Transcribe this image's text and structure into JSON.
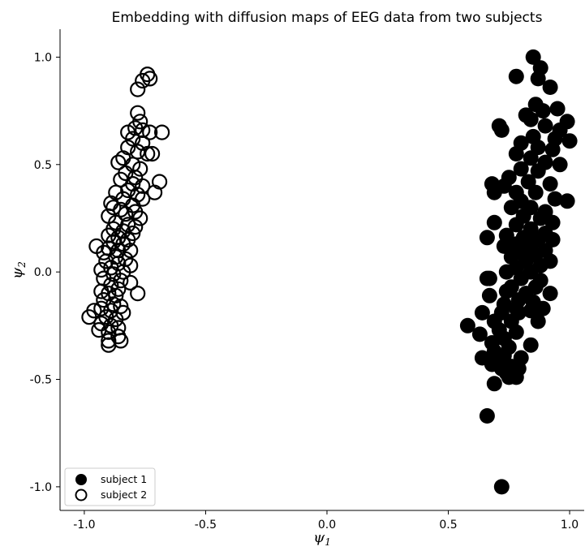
{
  "chart_data": {
    "type": "scatter",
    "title": "Embedding with diffusion maps of EEG data from two subjects",
    "xlabel": "ψ",
    "xlabel_sub": "1",
    "ylabel": "ψ",
    "ylabel_sub": "2",
    "xlim": [
      -1.1,
      1.06
    ],
    "ylim": [
      -1.11,
      1.13
    ],
    "xticks": [
      -1.0,
      -0.5,
      0.0,
      0.5,
      1.0
    ],
    "xtick_labels": [
      "-1.0",
      "-0.5",
      "0.0",
      "0.5",
      "1.0"
    ],
    "yticks": [
      -1.0,
      -0.5,
      0.0,
      0.5,
      1.0
    ],
    "ytick_labels": [
      "-1.0",
      "-0.5",
      "0.0",
      "0.5",
      "1.0"
    ],
    "grid": false,
    "legend_placement": "lower-left",
    "colors": {
      "marker": "#000000",
      "background": "#ffffff"
    },
    "series": [
      {
        "name": "subject 1",
        "marker": "filled-circle",
        "points": [
          [
            0.85,
            1.0
          ],
          [
            0.88,
            0.95
          ],
          [
            0.78,
            0.91
          ],
          [
            0.87,
            0.9
          ],
          [
            0.92,
            0.86
          ],
          [
            0.86,
            0.78
          ],
          [
            0.95,
            0.76
          ],
          [
            0.89,
            0.75
          ],
          [
            0.82,
            0.73
          ],
          [
            0.84,
            0.71
          ],
          [
            0.99,
            0.7
          ],
          [
            0.71,
            0.68
          ],
          [
            0.9,
            0.68
          ],
          [
            0.96,
            0.66
          ],
          [
            0.72,
            0.66
          ],
          [
            0.85,
            0.63
          ],
          [
            0.94,
            0.62
          ],
          [
            1.0,
            0.61
          ],
          [
            0.8,
            0.6
          ],
          [
            0.87,
            0.58
          ],
          [
            0.93,
            0.57
          ],
          [
            0.78,
            0.55
          ],
          [
            0.84,
            0.53
          ],
          [
            0.9,
            0.51
          ],
          [
            0.96,
            0.5
          ],
          [
            0.8,
            0.48
          ],
          [
            0.87,
            0.47
          ],
          [
            0.75,
            0.44
          ],
          [
            0.83,
            0.42
          ],
          [
            0.92,
            0.41
          ],
          [
            0.68,
            0.41
          ],
          [
            0.73,
            0.4
          ],
          [
            0.69,
            0.37
          ],
          [
            0.78,
            0.37
          ],
          [
            0.86,
            0.37
          ],
          [
            0.94,
            0.34
          ],
          [
            0.99,
            0.33
          ],
          [
            0.8,
            0.33
          ],
          [
            0.76,
            0.3
          ],
          [
            0.84,
            0.3
          ],
          [
            0.9,
            0.28
          ],
          [
            0.81,
            0.26
          ],
          [
            0.88,
            0.25
          ],
          [
            0.93,
            0.23
          ],
          [
            0.69,
            0.23
          ],
          [
            0.78,
            0.22
          ],
          [
            0.84,
            0.2
          ],
          [
            0.9,
            0.18
          ],
          [
            0.74,
            0.17
          ],
          [
            0.81,
            0.16
          ],
          [
            0.66,
            0.16
          ],
          [
            0.87,
            0.15
          ],
          [
            0.93,
            0.15
          ],
          [
            0.78,
            0.13
          ],
          [
            0.84,
            0.12
          ],
          [
            0.73,
            0.12
          ],
          [
            0.9,
            0.1
          ],
          [
            0.8,
            0.09
          ],
          [
            0.86,
            0.08
          ],
          [
            0.76,
            0.07
          ],
          [
            0.82,
            0.05
          ],
          [
            0.92,
            0.05
          ],
          [
            0.88,
            0.03
          ],
          [
            0.78,
            0.02
          ],
          [
            0.84,
            0.0
          ],
          [
            0.74,
            0.0
          ],
          [
            0.67,
            -0.03
          ],
          [
            0.66,
            -0.03
          ],
          [
            0.8,
            -0.03
          ],
          [
            0.88,
            -0.04
          ],
          [
            0.86,
            -0.07
          ],
          [
            0.76,
            -0.07
          ],
          [
            0.92,
            -0.1
          ],
          [
            0.74,
            -0.09
          ],
          [
            0.82,
            -0.1
          ],
          [
            0.67,
            -0.11
          ],
          [
            0.79,
            -0.13
          ],
          [
            0.85,
            -0.14
          ],
          [
            0.73,
            -0.15
          ],
          [
            0.89,
            -0.17
          ],
          [
            0.78,
            -0.17
          ],
          [
            0.84,
            -0.18
          ],
          [
            0.72,
            -0.19
          ],
          [
            0.79,
            -0.19
          ],
          [
            0.64,
            -0.19
          ],
          [
            0.87,
            -0.23
          ],
          [
            0.69,
            -0.23
          ],
          [
            0.76,
            -0.23
          ],
          [
            0.58,
            -0.25
          ],
          [
            0.71,
            -0.27
          ],
          [
            0.78,
            -0.28
          ],
          [
            0.63,
            -0.29
          ],
          [
            0.73,
            -0.31
          ],
          [
            0.68,
            -0.33
          ],
          [
            0.84,
            -0.34
          ],
          [
            0.75,
            -0.35
          ],
          [
            0.69,
            -0.37
          ],
          [
            0.73,
            -0.39
          ],
          [
            0.64,
            -0.4
          ],
          [
            0.8,
            -0.4
          ],
          [
            0.7,
            -0.41
          ],
          [
            0.68,
            -0.43
          ],
          [
            0.76,
            -0.44
          ],
          [
            0.72,
            -0.45
          ],
          [
            0.79,
            -0.45
          ],
          [
            0.74,
            -0.47
          ],
          [
            0.75,
            -0.49
          ],
          [
            0.78,
            -0.49
          ],
          [
            0.69,
            -0.52
          ],
          [
            0.66,
            -0.67
          ],
          [
            0.72,
            -1.0
          ]
        ]
      },
      {
        "name": "subject 2",
        "marker": "hollow-circle",
        "points": [
          [
            -0.74,
            0.92
          ],
          [
            -0.73,
            0.9
          ],
          [
            -0.76,
            0.89
          ],
          [
            -0.78,
            0.85
          ],
          [
            -0.78,
            0.74
          ],
          [
            -0.77,
            0.7
          ],
          [
            -0.79,
            0.67
          ],
          [
            -0.76,
            0.66
          ],
          [
            -0.82,
            0.65
          ],
          [
            -0.68,
            0.65
          ],
          [
            -0.73,
            0.65
          ],
          [
            -0.8,
            0.62
          ],
          [
            -0.76,
            0.6
          ],
          [
            -0.82,
            0.58
          ],
          [
            -0.78,
            0.56
          ],
          [
            -0.72,
            0.55
          ],
          [
            -0.74,
            0.55
          ],
          [
            -0.84,
            0.53
          ],
          [
            -0.86,
            0.51
          ],
          [
            -0.8,
            0.5
          ],
          [
            -0.77,
            0.48
          ],
          [
            -0.83,
            0.46
          ],
          [
            -0.79,
            0.44
          ],
          [
            -0.85,
            0.43
          ],
          [
            -0.69,
            0.42
          ],
          [
            -0.8,
            0.41
          ],
          [
            -0.76,
            0.4
          ],
          [
            -0.82,
            0.38
          ],
          [
            -0.87,
            0.37
          ],
          [
            -0.71,
            0.37
          ],
          [
            -0.78,
            0.36
          ],
          [
            -0.84,
            0.34
          ],
          [
            -0.76,
            0.34
          ],
          [
            -0.89,
            0.32
          ],
          [
            -0.8,
            0.31
          ],
          [
            -0.88,
            0.3
          ],
          [
            -0.85,
            0.29
          ],
          [
            -0.79,
            0.28
          ],
          [
            -0.83,
            0.27
          ],
          [
            -0.9,
            0.26
          ],
          [
            -0.77,
            0.25
          ],
          [
            -0.87,
            0.23
          ],
          [
            -0.82,
            0.22
          ],
          [
            -0.79,
            0.21
          ],
          [
            -0.88,
            0.2
          ],
          [
            -0.84,
            0.19
          ],
          [
            -0.8,
            0.18
          ],
          [
            -0.9,
            0.17
          ],
          [
            -0.86,
            0.16
          ],
          [
            -0.82,
            0.15
          ],
          [
            -0.88,
            0.14
          ],
          [
            -0.84,
            0.13
          ],
          [
            -0.95,
            0.12
          ],
          [
            -0.9,
            0.11
          ],
          [
            -0.86,
            0.1
          ],
          [
            -0.81,
            0.1
          ],
          [
            -0.92,
            0.09
          ],
          [
            -0.87,
            0.07
          ],
          [
            -0.83,
            0.06
          ],
          [
            -0.91,
            0.05
          ],
          [
            -0.86,
            0.04
          ],
          [
            -0.81,
            0.03
          ],
          [
            -0.89,
            0.02
          ],
          [
            -0.93,
            0.01
          ],
          [
            -0.84,
            0.0
          ],
          [
            -0.88,
            -0.01
          ],
          [
            -0.92,
            -0.03
          ],
          [
            -0.85,
            -0.04
          ],
          [
            -0.81,
            -0.05
          ],
          [
            -0.89,
            -0.06
          ],
          [
            -0.86,
            -0.08
          ],
          [
            -0.93,
            -0.09
          ],
          [
            -0.9,
            -0.1
          ],
          [
            -0.78,
            -0.1
          ],
          [
            -0.87,
            -0.11
          ],
          [
            -0.92,
            -0.13
          ],
          [
            -0.88,
            -0.15
          ],
          [
            -0.85,
            -0.16
          ],
          [
            -0.93,
            -0.17
          ],
          [
            -0.89,
            -0.18
          ],
          [
            -0.96,
            -0.18
          ],
          [
            -0.84,
            -0.19
          ],
          [
            -0.98,
            -0.21
          ],
          [
            -0.91,
            -0.21
          ],
          [
            -0.87,
            -0.22
          ],
          [
            -0.93,
            -0.24
          ],
          [
            -0.89,
            -0.25
          ],
          [
            -0.86,
            -0.26
          ],
          [
            -0.94,
            -0.27
          ],
          [
            -0.9,
            -0.28
          ],
          [
            -0.86,
            -0.3
          ],
          [
            -0.9,
            -0.32
          ],
          [
            -0.85,
            -0.32
          ],
          [
            -0.9,
            -0.34
          ]
        ]
      }
    ]
  }
}
